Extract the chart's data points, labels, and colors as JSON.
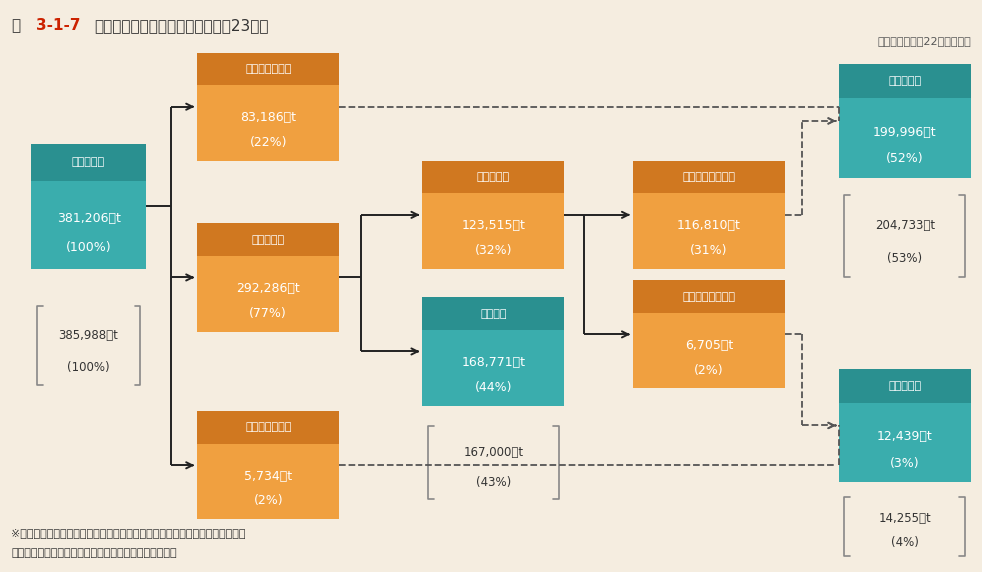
{
  "title_fig": "図",
  "title_num": "3-1-7",
  "title_rest": "　産業廃棄物の処理の流れ（平成23年）",
  "bg_color": "#f5ede0",
  "teal_color": "#3aadad",
  "teal_dark": "#2a9090",
  "orange_color": "#f0a040",
  "orange_dark": "#d07820",
  "footnote1": "［　］内は平成22年度の数値",
  "footnote2": "※各項目量は、四捨五入して表示しているため、収支が合わない場合がある。",
  "footnote3": "資料：環境省「産業廃棄物排出・処理状況調査報告書」",
  "boxes_layout": {
    "emission": [
      0.03,
      0.53,
      0.118,
      0.22
    ],
    "emission_prev": [
      0.03,
      0.32,
      0.118,
      0.15
    ],
    "direct_recycle": [
      0.2,
      0.72,
      0.145,
      0.19
    ],
    "intermediate": [
      0.2,
      0.42,
      0.145,
      0.19
    ],
    "direct_final": [
      0.2,
      0.09,
      0.145,
      0.19
    ],
    "residue": [
      0.43,
      0.53,
      0.145,
      0.19
    ],
    "reduction": [
      0.43,
      0.29,
      0.145,
      0.19
    ],
    "reduction_prev": [
      0.43,
      0.12,
      0.145,
      0.14
    ],
    "post_recycle": [
      0.645,
      0.53,
      0.155,
      0.19
    ],
    "post_final": [
      0.645,
      0.32,
      0.155,
      0.19
    ],
    "recycle_total": [
      0.855,
      0.69,
      0.135,
      0.2
    ],
    "recycle_prev": [
      0.855,
      0.51,
      0.135,
      0.155
    ],
    "final_total": [
      0.855,
      0.155,
      0.135,
      0.2
    ],
    "final_prev": [
      0.855,
      0.02,
      0.135,
      0.115
    ]
  },
  "colored_boxes": {
    "emission": [
      "排　出　量",
      "381,206千t",
      "(100%)",
      "#3aadad",
      "#2a9090"
    ],
    "direct_recycle": [
      "直接再生利用量",
      "83,186千t",
      "(22%)",
      "#f0a040",
      "#d07820"
    ],
    "intermediate": [
      "中間処理量",
      "292,286千t",
      "(77%)",
      "#f0a040",
      "#d07820"
    ],
    "direct_final": [
      "直接最終処分量",
      "5,734千t",
      "(2%)",
      "#f0a040",
      "#d07820"
    ],
    "residue": [
      "処理残渣量",
      "123,515千t",
      "(32%)",
      "#f0a040",
      "#d07820"
    ],
    "reduction": [
      "減量化量",
      "168,771千t",
      "(44%)",
      "#3aadad",
      "#2a9090"
    ],
    "post_recycle": [
      "処理後再生利用量",
      "116,810千t",
      "(31%)",
      "#f0a040",
      "#d07820"
    ],
    "post_final": [
      "処理後最終処分量",
      "6,705千t",
      "(2%)",
      "#f0a040",
      "#d07820"
    ],
    "recycle_total": [
      "再生利用量",
      "199,996千t",
      "(52%)",
      "#3aadad",
      "#2a9090"
    ],
    "final_total": [
      "最終処分量",
      "12,439千t",
      "(3%)",
      "#3aadad",
      "#2a9090"
    ]
  },
  "bracket_boxes": {
    "emission_prev": [
      "385,988千t",
      "(100%)"
    ],
    "reduction_prev": [
      "167,000千t",
      "(43%)"
    ],
    "recycle_prev": [
      "204,733千t",
      "(53%)"
    ],
    "final_prev": [
      "14,255千t",
      "(4%)"
    ]
  }
}
